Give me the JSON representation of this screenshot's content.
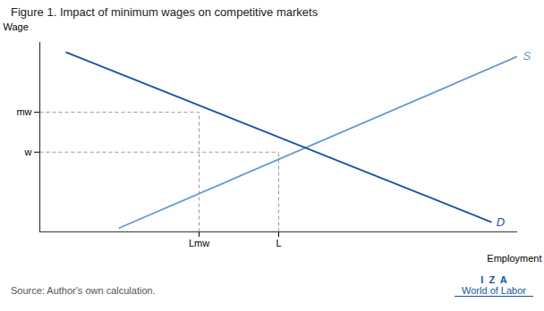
{
  "chart_data": {
    "type": "line",
    "title": "Figure 1. Impact of minimum wages on competitive markets",
    "xlabel": "Employment",
    "ylabel": "Wage",
    "xlim": [
      0,
      9.0
    ],
    "ylim": [
      1.0,
      10.5
    ],
    "xticks": [
      {
        "value": 3.0,
        "label": "Lmw"
      },
      {
        "value": 4.5,
        "label": "L"
      }
    ],
    "yticks": [
      {
        "value": 7.0,
        "label": "mw"
      },
      {
        "value": 5.0,
        "label": "w"
      }
    ],
    "grid": false,
    "series": [
      {
        "name": "S",
        "color": "#6699cc",
        "x": [
          1.5,
          9.0
        ],
        "values": [
          1.2,
          9.8
        ]
      },
      {
        "name": "D",
        "color": "#1a52a0",
        "x": [
          0.5,
          8.5
        ],
        "values": [
          10.0,
          1.5
        ]
      }
    ],
    "reference_points": [
      {
        "x": 3.0,
        "y": 7.0
      },
      {
        "x": 4.5,
        "y": 5.0
      }
    ],
    "source": "Source: Author's own calculation.",
    "annotations": [
      "I  Z  A",
      "World of Labor"
    ]
  }
}
